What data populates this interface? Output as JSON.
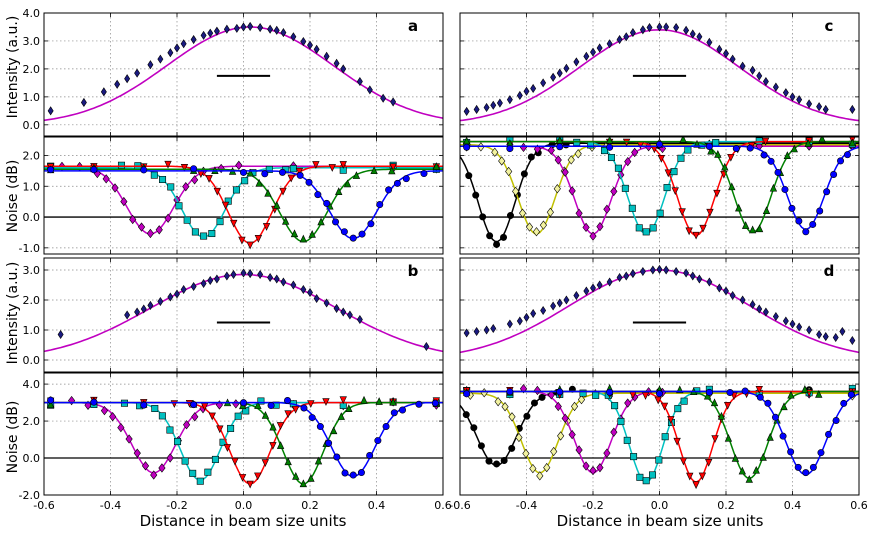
{
  "figure": {
    "xlabel": "Distance in beam size units",
    "ylabel_intensity": "Intensity (a.u.)",
    "ylabel_noise": "Noise (dB)",
    "panel_labels": [
      "a",
      "b",
      "c",
      "d"
    ]
  },
  "colors": {
    "magenta": "#c000c0",
    "cyan": "#00c0c0",
    "red": "#ff0000",
    "green": "#008000",
    "blue": "#0000ff",
    "black": "#000000",
    "yellow": "#c0c000",
    "marker_navy": "#1a1a80"
  },
  "chart_data": [
    {
      "id": "a_intensity",
      "type": "line+scatter",
      "panel": "a",
      "title": "a",
      "ylabel": "Intensity (a.u.)",
      "xlim": [
        -0.6,
        0.6
      ],
      "ylim": [
        -0.4,
        4.0
      ],
      "yticks": [
        0.0,
        1.0,
        2.0,
        3.0,
        4.0
      ],
      "yticklabels": [
        "0.0",
        "1.0",
        "2.0",
        "3.0",
        "4.0"
      ],
      "xticks": [
        -0.6,
        -0.4,
        -0.2,
        0.0,
        0.2,
        0.4,
        0.6
      ],
      "gaussian_fit": {
        "amplitude": 3.5,
        "center": 0.02,
        "sigma": 0.25,
        "color": "magenta"
      },
      "scale_bar": {
        "x0": -0.08,
        "x1": 0.08,
        "y": 1.75
      },
      "points": [
        [
          -0.58,
          0.5
        ],
        [
          -0.48,
          0.8
        ],
        [
          -0.42,
          1.18
        ],
        [
          -0.38,
          1.45
        ],
        [
          -0.35,
          1.65
        ],
        [
          -0.32,
          1.85
        ],
        [
          -0.28,
          2.15
        ],
        [
          -0.25,
          2.35
        ],
        [
          -0.22,
          2.58
        ],
        [
          -0.2,
          2.75
        ],
        [
          -0.18,
          2.9
        ],
        [
          -0.15,
          3.05
        ],
        [
          -0.12,
          3.2
        ],
        [
          -0.1,
          3.28
        ],
        [
          -0.08,
          3.35
        ],
        [
          -0.05,
          3.42
        ],
        [
          -0.02,
          3.45
        ],
        [
          0.0,
          3.5
        ],
        [
          0.02,
          3.52
        ],
        [
          0.05,
          3.48
        ],
        [
          0.08,
          3.42
        ],
        [
          0.1,
          3.38
        ],
        [
          0.12,
          3.3
        ],
        [
          0.15,
          3.15
        ],
        [
          0.18,
          2.98
        ],
        [
          0.2,
          2.85
        ],
        [
          0.22,
          2.7
        ],
        [
          0.25,
          2.45
        ],
        [
          0.28,
          2.2
        ],
        [
          0.3,
          2.0
        ],
        [
          0.35,
          1.55
        ],
        [
          0.38,
          1.25
        ],
        [
          0.42,
          0.95
        ],
        [
          0.45,
          0.82
        ]
      ]
    },
    {
      "id": "a_noise",
      "type": "line+scatter",
      "panel": "a",
      "ylabel": "Noise (dB)",
      "xlim": [
        -0.6,
        0.6
      ],
      "ylim": [
        -1.2,
        2.6
      ],
      "yticks": [
        -1.0,
        0.0,
        1.0,
        2.0
      ],
      "yticklabels": [
        "-1.0",
        "0.0",
        "1.0",
        "2.0"
      ],
      "xticks": [
        -0.6,
        -0.4,
        -0.2,
        0.0,
        0.2,
        0.4,
        0.6
      ],
      "series": [
        {
          "name": "magenta",
          "color": "magenta",
          "marker": "diamond",
          "baseline": 1.65,
          "dip": 2.2,
          "center": -0.28,
          "sigma": 0.07
        },
        {
          "name": "cyan",
          "color": "cyan",
          "marker": "square",
          "baseline": 1.6,
          "dip": 2.25,
          "center": -0.12,
          "sigma": 0.065
        },
        {
          "name": "red",
          "color": "red",
          "marker": "triangle-down",
          "baseline": 1.65,
          "dip": 2.5,
          "center": 0.02,
          "sigma": 0.065
        },
        {
          "name": "green",
          "color": "green",
          "marker": "triangle-up",
          "baseline": 1.55,
          "dip": 2.35,
          "center": 0.18,
          "sigma": 0.07
        },
        {
          "name": "blue",
          "color": "blue",
          "marker": "circle",
          "baseline": 1.5,
          "dip": 2.2,
          "center": 0.33,
          "sigma": 0.07
        }
      ]
    },
    {
      "id": "b_intensity",
      "type": "line+scatter",
      "panel": "b",
      "title": "b",
      "ylabel": "Intensity (a.u.)",
      "xlim": [
        -0.6,
        0.6
      ],
      "ylim": [
        -0.4,
        3.4
      ],
      "yticks": [
        0.0,
        1.0,
        2.0,
        3.0
      ],
      "yticklabels": [
        "0.0",
        "1.0",
        "2.0",
        "3.0"
      ],
      "xticks": [
        -0.6,
        -0.4,
        -0.2,
        0.0,
        0.2,
        0.4,
        0.6
      ],
      "gaussian_fit": {
        "amplitude": 2.85,
        "center": 0.0,
        "sigma": 0.28,
        "color": "magenta"
      },
      "scale_bar": {
        "x0": -0.08,
        "x1": 0.08,
        "y": 1.25
      },
      "points": [
        [
          -0.55,
          0.85
        ],
        [
          -0.35,
          1.5
        ],
        [
          -0.32,
          1.6
        ],
        [
          -0.3,
          1.7
        ],
        [
          -0.28,
          1.82
        ],
        [
          -0.25,
          1.95
        ],
        [
          -0.22,
          2.1
        ],
        [
          -0.2,
          2.2
        ],
        [
          -0.18,
          2.35
        ],
        [
          -0.15,
          2.45
        ],
        [
          -0.12,
          2.55
        ],
        [
          -0.1,
          2.65
        ],
        [
          -0.08,
          2.7
        ],
        [
          -0.05,
          2.8
        ],
        [
          -0.03,
          2.85
        ],
        [
          0.0,
          2.9
        ],
        [
          0.02,
          2.88
        ],
        [
          0.05,
          2.85
        ],
        [
          0.08,
          2.75
        ],
        [
          0.1,
          2.7
        ],
        [
          0.12,
          2.6
        ],
        [
          0.15,
          2.5
        ],
        [
          0.18,
          2.35
        ],
        [
          0.2,
          2.25
        ],
        [
          0.22,
          2.05
        ],
        [
          0.25,
          1.9
        ],
        [
          0.28,
          1.72
        ],
        [
          0.3,
          1.6
        ],
        [
          0.32,
          1.5
        ],
        [
          0.35,
          1.35
        ],
        [
          0.55,
          0.45
        ]
      ]
    },
    {
      "id": "b_noise",
      "type": "line+scatter",
      "panel": "b",
      "ylabel": "Noise (dB)",
      "xlim": [
        -0.6,
        0.6
      ],
      "ylim": [
        -2.0,
        4.6
      ],
      "yticks": [
        -2.0,
        0.0,
        2.0,
        4.0
      ],
      "yticklabels": [
        "-2.0",
        "0.0",
        "2.0",
        "4.0"
      ],
      "xticks": [
        -0.6,
        -0.4,
        -0.2,
        0.0,
        0.2,
        0.4,
        0.6
      ],
      "series": [
        {
          "name": "magenta",
          "color": "magenta",
          "marker": "diamond",
          "baseline": 3.0,
          "dip": 3.8,
          "center": -0.27,
          "sigma": 0.065
        },
        {
          "name": "cyan",
          "color": "cyan",
          "marker": "square",
          "baseline": 3.0,
          "dip": 4.2,
          "center": -0.13,
          "sigma": 0.06
        },
        {
          "name": "red",
          "color": "red",
          "marker": "triangle-down",
          "baseline": 3.0,
          "dip": 4.4,
          "center": 0.02,
          "sigma": 0.06
        },
        {
          "name": "green",
          "color": "green",
          "marker": "triangle-up",
          "baseline": 3.0,
          "dip": 4.4,
          "center": 0.18,
          "sigma": 0.06
        },
        {
          "name": "blue",
          "color": "blue",
          "marker": "circle",
          "baseline": 3.0,
          "dip": 4.0,
          "center": 0.33,
          "sigma": 0.065
        }
      ]
    },
    {
      "id": "c_intensity",
      "type": "line+scatter",
      "panel": "c",
      "title": "c",
      "ylabel": "",
      "xlim": [
        -0.6,
        0.6
      ],
      "ylim": [
        -0.4,
        4.0
      ],
      "yticks": [
        0.0,
        1.0,
        2.0,
        3.0,
        4.0
      ],
      "yticklabels": [],
      "xticks": [
        -0.6,
        -0.4,
        -0.2,
        0.0,
        0.2,
        0.4,
        0.6
      ],
      "gaussian_fit": {
        "amplitude": 3.4,
        "center": 0.0,
        "sigma": 0.24,
        "color": "magenta"
      },
      "scale_bar": {
        "x0": -0.08,
        "x1": 0.08,
        "y": 1.75
      },
      "points": [
        [
          -0.58,
          0.48
        ],
        [
          -0.55,
          0.55
        ],
        [
          -0.52,
          0.62
        ],
        [
          -0.5,
          0.7
        ],
        [
          -0.48,
          0.78
        ],
        [
          -0.45,
          0.9
        ],
        [
          -0.42,
          1.05
        ],
        [
          -0.4,
          1.2
        ],
        [
          -0.38,
          1.3
        ],
        [
          -0.35,
          1.5
        ],
        [
          -0.32,
          1.7
        ],
        [
          -0.3,
          1.85
        ],
        [
          -0.28,
          2.02
        ],
        [
          -0.25,
          2.25
        ],
        [
          -0.22,
          2.45
        ],
        [
          -0.2,
          2.6
        ],
        [
          -0.18,
          2.75
        ],
        [
          -0.15,
          2.9
        ],
        [
          -0.12,
          3.05
        ],
        [
          -0.1,
          3.15
        ],
        [
          -0.08,
          3.3
        ],
        [
          -0.05,
          3.4
        ],
        [
          -0.03,
          3.48
        ],
        [
          0.0,
          3.5
        ],
        [
          0.02,
          3.5
        ],
        [
          0.05,
          3.48
        ],
        [
          0.08,
          3.38
        ],
        [
          0.1,
          3.25
        ],
        [
          0.12,
          3.15
        ],
        [
          0.15,
          2.95
        ],
        [
          0.18,
          2.7
        ],
        [
          0.2,
          2.55
        ],
        [
          0.22,
          2.35
        ],
        [
          0.25,
          2.1
        ],
        [
          0.28,
          1.95
        ],
        [
          0.3,
          1.75
        ],
        [
          0.32,
          1.55
        ],
        [
          0.35,
          1.35
        ],
        [
          0.38,
          1.15
        ],
        [
          0.4,
          1.0
        ],
        [
          0.42,
          0.9
        ],
        [
          0.45,
          0.75
        ],
        [
          0.48,
          0.65
        ],
        [
          0.5,
          0.55
        ],
        [
          0.58,
          0.55
        ]
      ]
    },
    {
      "id": "c_noise",
      "type": "line+scatter",
      "panel": "c",
      "ylabel": "",
      "xlim": [
        -0.6,
        0.6
      ],
      "ylim": [
        -1.2,
        2.6
      ],
      "yticks": [
        -1.0,
        0.0,
        1.0,
        2.0
      ],
      "yticklabels": [],
      "xticks": [
        -0.6,
        -0.4,
        -0.2,
        0.0,
        0.2,
        0.4,
        0.6
      ],
      "series": [
        {
          "name": "black",
          "color": "black",
          "marker": "circle",
          "baseline": 2.4,
          "dip": 3.2,
          "center": -0.49,
          "sigma": 0.055
        },
        {
          "name": "yellow",
          "color": "yellow",
          "marker": "diamond-open",
          "baseline": 2.35,
          "dip": 2.9,
          "center": -0.37,
          "sigma": 0.055
        },
        {
          "name": "magenta",
          "color": "magenta",
          "marker": "diamond",
          "baseline": 2.3,
          "dip": 2.85,
          "center": -0.2,
          "sigma": 0.055
        },
        {
          "name": "cyan",
          "color": "cyan",
          "marker": "square",
          "baseline": 2.45,
          "dip": 3.0,
          "center": -0.04,
          "sigma": 0.055
        },
        {
          "name": "red",
          "color": "red",
          "marker": "triangle-down",
          "baseline": 2.45,
          "dip": 3.05,
          "center": 0.11,
          "sigma": 0.055
        },
        {
          "name": "green",
          "color": "green",
          "marker": "triangle-up",
          "baseline": 2.45,
          "dip": 2.95,
          "center": 0.28,
          "sigma": 0.055
        },
        {
          "name": "blue",
          "color": "blue",
          "marker": "circle",
          "baseline": 2.3,
          "dip": 2.7,
          "center": 0.44,
          "sigma": 0.055
        }
      ]
    },
    {
      "id": "d_intensity",
      "type": "line+scatter",
      "panel": "d",
      "title": "d",
      "ylabel": "",
      "xlim": [
        -0.6,
        0.6
      ],
      "ylim": [
        -0.4,
        3.4
      ],
      "yticks": [
        0.0,
        1.0,
        2.0,
        3.0
      ],
      "yticklabels": [],
      "xticks": [
        -0.6,
        -0.4,
        -0.2,
        0.0,
        0.2,
        0.4,
        0.6
      ],
      "gaussian_fit": {
        "amplitude": 3.0,
        "center": 0.0,
        "sigma": 0.27,
        "color": "magenta"
      },
      "scale_bar": {
        "x0": -0.08,
        "x1": 0.08,
        "y": 1.25
      },
      "points": [
        [
          -0.58,
          0.9
        ],
        [
          -0.55,
          0.95
        ],
        [
          -0.52,
          1.0
        ],
        [
          -0.5,
          1.05
        ],
        [
          -0.45,
          1.2
        ],
        [
          -0.42,
          1.3
        ],
        [
          -0.4,
          1.42
        ],
        [
          -0.38,
          1.55
        ],
        [
          -0.35,
          1.65
        ],
        [
          -0.32,
          1.8
        ],
        [
          -0.3,
          1.9
        ],
        [
          -0.28,
          2.0
        ],
        [
          -0.25,
          2.15
        ],
        [
          -0.22,
          2.3
        ],
        [
          -0.2,
          2.4
        ],
        [
          -0.18,
          2.5
        ],
        [
          -0.15,
          2.6
        ],
        [
          -0.12,
          2.75
        ],
        [
          -0.1,
          2.8
        ],
        [
          -0.08,
          2.88
        ],
        [
          -0.05,
          2.95
        ],
        [
          -0.02,
          3.0
        ],
        [
          0.0,
          3.02
        ],
        [
          0.02,
          3.0
        ],
        [
          0.05,
          2.95
        ],
        [
          0.08,
          2.9
        ],
        [
          0.1,
          2.8
        ],
        [
          0.12,
          2.7
        ],
        [
          0.15,
          2.6
        ],
        [
          0.18,
          2.4
        ],
        [
          0.2,
          2.3
        ],
        [
          0.22,
          2.15
        ],
        [
          0.25,
          2.0
        ],
        [
          0.28,
          1.85
        ],
        [
          0.3,
          1.7
        ],
        [
          0.32,
          1.6
        ],
        [
          0.35,
          1.45
        ],
        [
          0.38,
          1.3
        ],
        [
          0.4,
          1.2
        ],
        [
          0.42,
          1.1
        ],
        [
          0.45,
          1.0
        ],
        [
          0.48,
          0.85
        ],
        [
          0.5,
          0.78
        ],
        [
          0.53,
          0.75
        ],
        [
          0.55,
          0.95
        ],
        [
          0.58,
          0.65
        ]
      ]
    },
    {
      "id": "d_noise",
      "type": "line+scatter",
      "panel": "d",
      "ylabel": "",
      "xlim": [
        -0.6,
        0.6
      ],
      "ylim": [
        -2.0,
        4.6
      ],
      "yticks": [
        -2.0,
        0.0,
        2.0,
        4.0
      ],
      "yticklabels": [],
      "xticks": [
        -0.6,
        -0.4,
        -0.2,
        0.0,
        0.2,
        0.4,
        0.6
      ],
      "xticklabels": [
        "-0.6",
        "-0.4",
        "-0.2",
        "0.0",
        "0.2",
        "0.4",
        "0.6"
      ],
      "series": [
        {
          "name": "black",
          "color": "black",
          "marker": "circle",
          "baseline": 3.6,
          "dip": 4.0,
          "center": -0.49,
          "sigma": 0.06
        },
        {
          "name": "yellow",
          "color": "yellow",
          "marker": "diamond-open",
          "baseline": 3.5,
          "dip": 4.3,
          "center": -0.36,
          "sigma": 0.055
        },
        {
          "name": "magenta",
          "color": "magenta",
          "marker": "diamond",
          "baseline": 3.6,
          "dip": 4.4,
          "center": -0.2,
          "sigma": 0.055
        },
        {
          "name": "cyan",
          "color": "cyan",
          "marker": "square",
          "baseline": 3.6,
          "dip": 4.9,
          "center": -0.04,
          "sigma": 0.05
        },
        {
          "name": "red",
          "color": "red",
          "marker": "triangle-down",
          "baseline": 3.6,
          "dip": 4.9,
          "center": 0.11,
          "sigma": 0.05
        },
        {
          "name": "green",
          "color": "green",
          "marker": "triangle-up",
          "baseline": 3.6,
          "dip": 4.7,
          "center": 0.27,
          "sigma": 0.055
        },
        {
          "name": "blue",
          "color": "blue",
          "marker": "circle",
          "baseline": 3.6,
          "dip": 4.5,
          "center": 0.44,
          "sigma": 0.06
        }
      ]
    }
  ]
}
